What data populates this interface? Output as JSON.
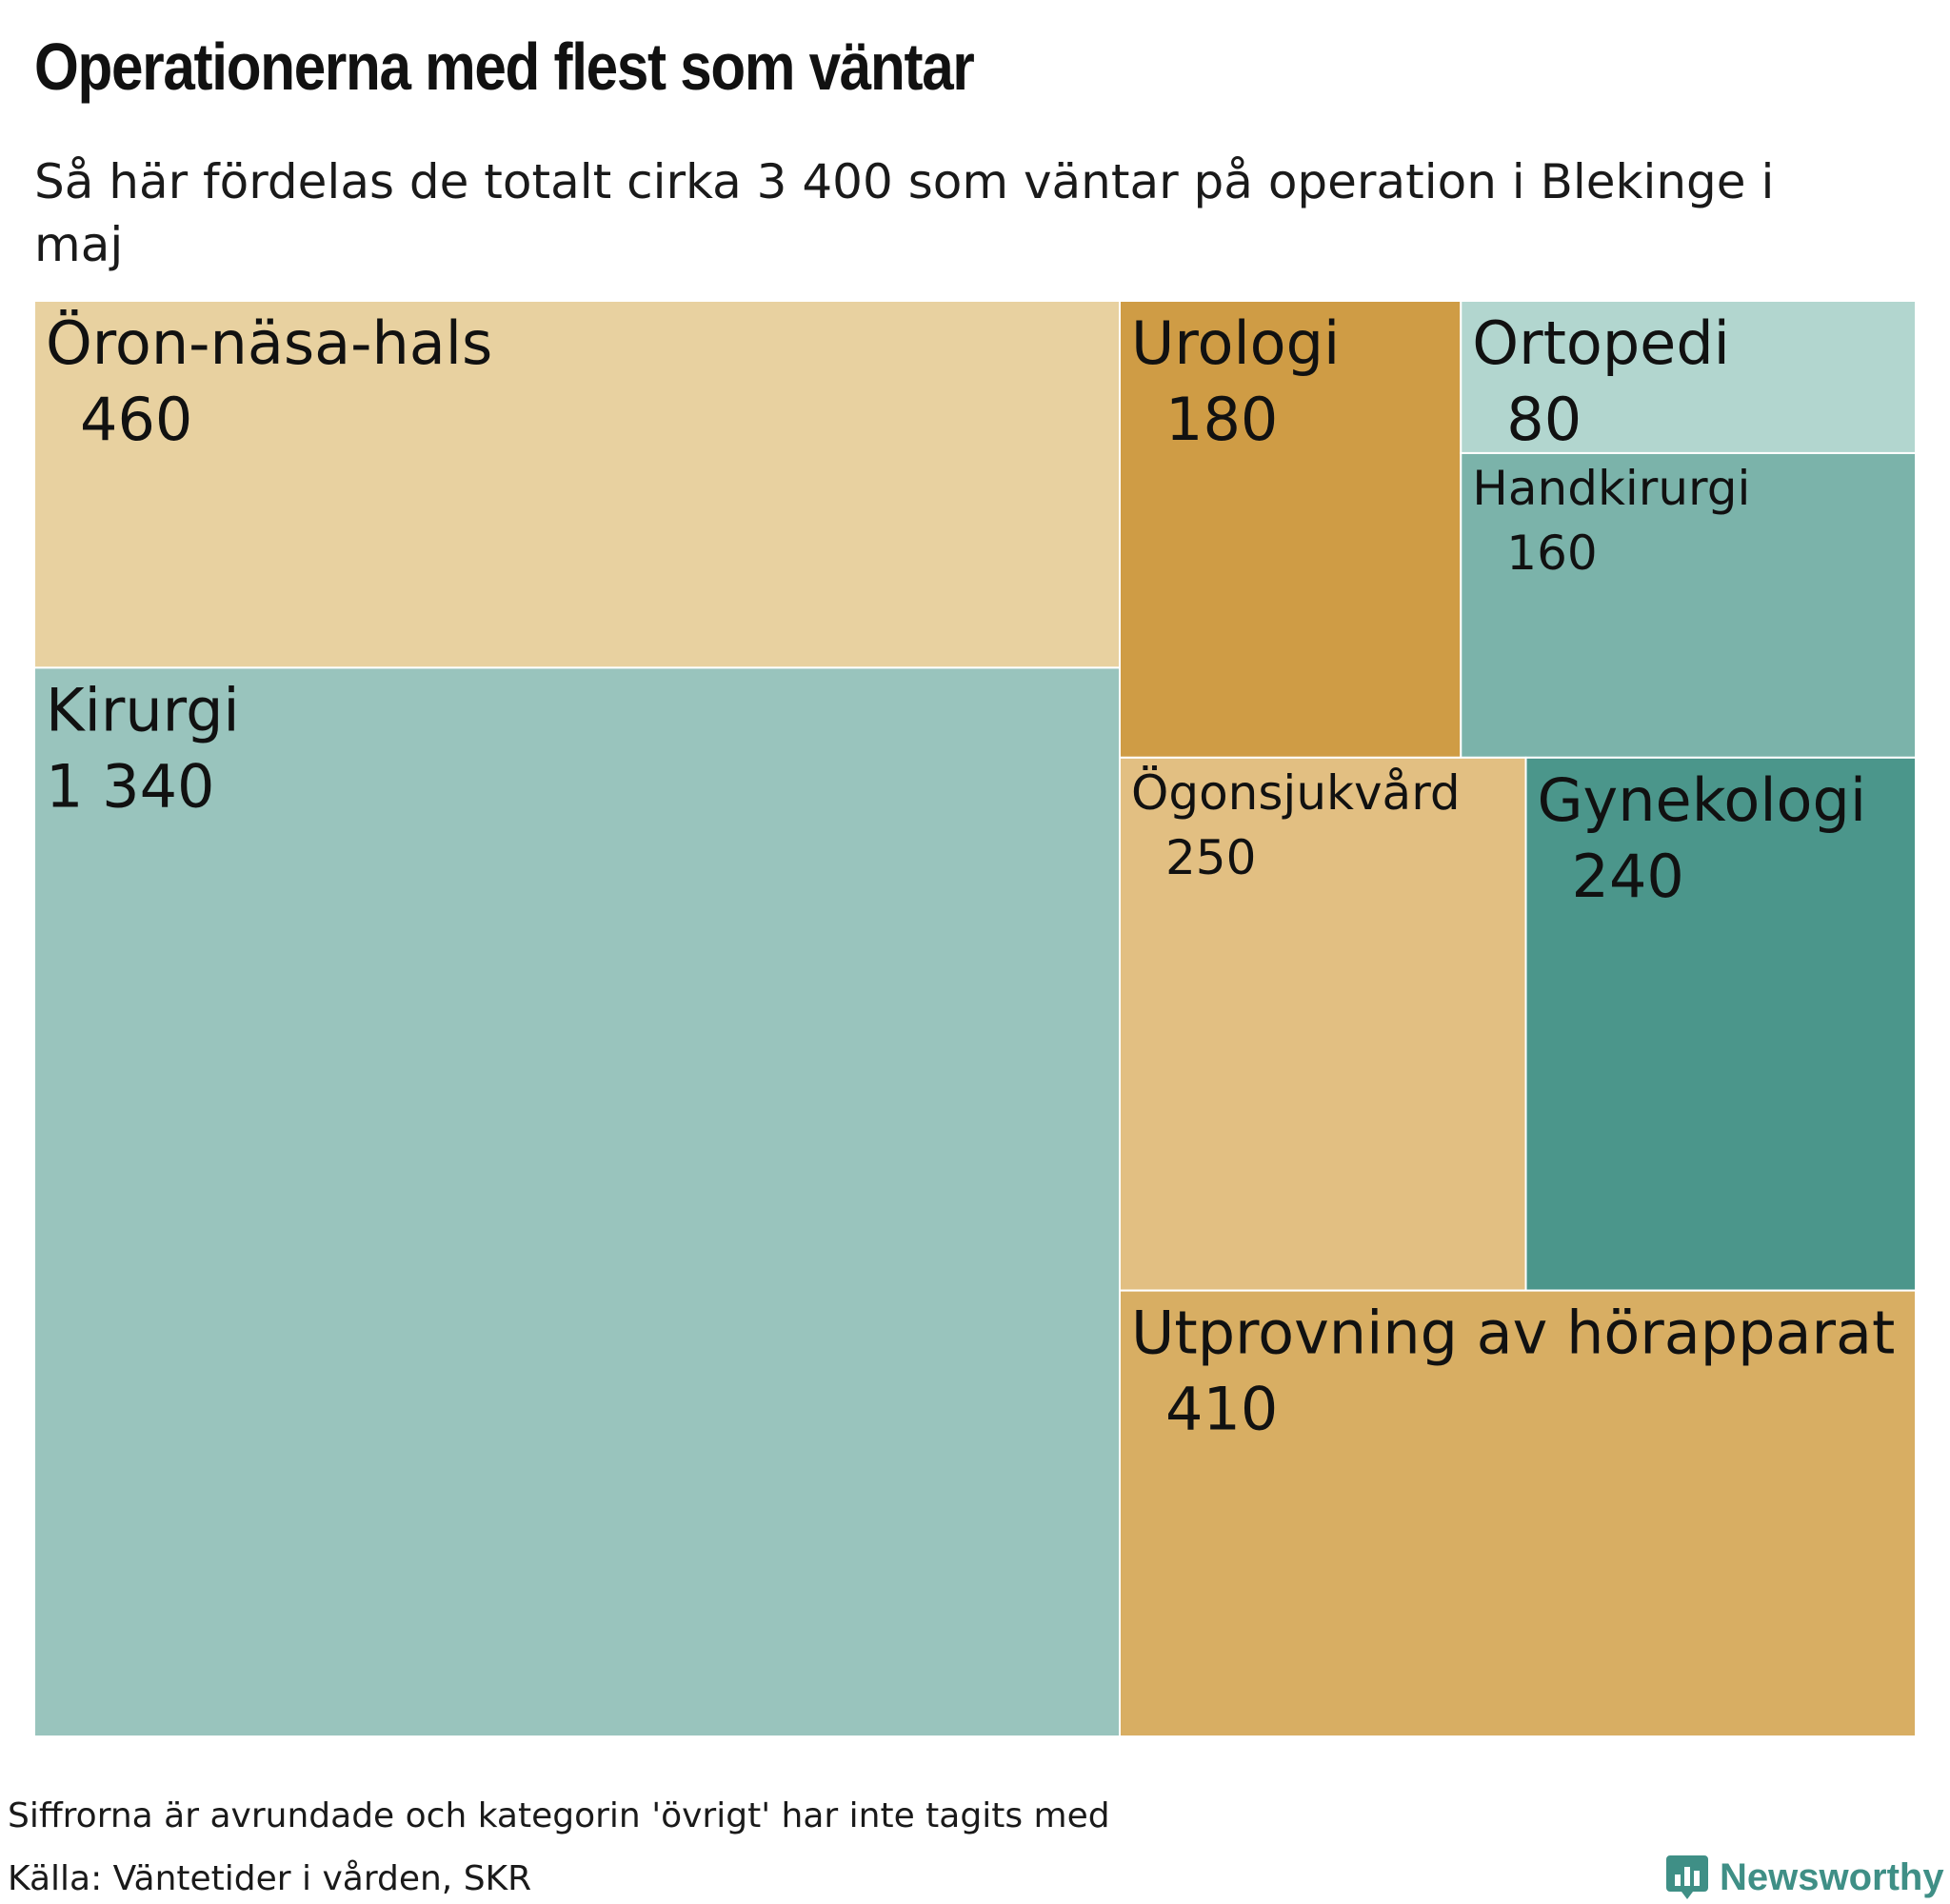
{
  "title": "Operationerna med flest som väntar",
  "subtitle": "Så här fördelas de totalt cirka 3 400 som väntar på operation i Blekinge i maj",
  "note": "Siffrorna är avrundade och kategorin 'övrigt' har inte tagits med",
  "source": "Källa: Väntetider i vården, SKR",
  "brand": {
    "name": "Newsworthy",
    "icon": "bar-chart-speech-bubble-icon",
    "color": "#3f8f86"
  },
  "chart_data": {
    "type": "treemap",
    "title": "Operationerna med flest som väntar",
    "total_label": "3 400",
    "items": [
      {
        "name": "Öron-näsa-hals",
        "value": 460,
        "label": "460",
        "color": "#e8d1a0"
      },
      {
        "name": "Kirurgi",
        "value": 1340,
        "label": "1 340",
        "color": "#99c4bd"
      },
      {
        "name": "Urologi",
        "value": 180,
        "label": "180",
        "color": "#cf9c45"
      },
      {
        "name": "Ortopedi",
        "value": 80,
        "label": "80",
        "color": "#b2d6cf"
      },
      {
        "name": "Handkirurgi",
        "value": 160,
        "label": "160",
        "color": "#7bb3aa"
      },
      {
        "name": "Ögonsjukvård",
        "value": 250,
        "label": "250",
        "color": "#e2bf82"
      },
      {
        "name": "Gynekologi",
        "value": 240,
        "label": "240",
        "color": "#4b968b"
      },
      {
        "name": "Utprovning av hörapparat",
        "value": 410,
        "label": "410",
        "color": "#d8ae63"
      }
    ]
  }
}
